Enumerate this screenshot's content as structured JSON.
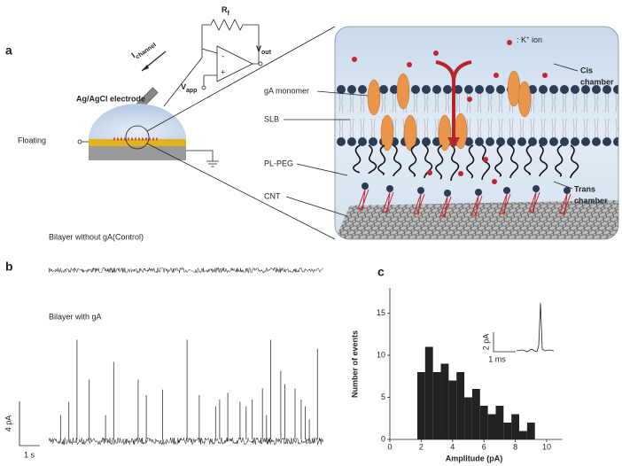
{
  "panel_a": {
    "label": "a",
    "circuit": {
      "rf": {
        "main": "R",
        "sub": "f"
      },
      "current": {
        "main": "I",
        "sub": "channel"
      },
      "vout": {
        "main": "V",
        "sub": "out"
      },
      "vapp": {
        "main": "V",
        "sub": "app"
      },
      "op_minus": "-",
      "op_plus": "+",
      "electrode": "Ag/AgCl electrode",
      "floating": "Floating"
    },
    "schematic": {
      "ion_legend": {
        "pre": ": K",
        "sup": "+",
        "post": " ion"
      },
      "cis": [
        "Cis",
        "chamber"
      ],
      "trans": [
        "Trans",
        "chamber"
      ],
      "labels": [
        "gA monomer",
        "SLB",
        "PL-PEG",
        "CNT"
      ]
    }
  },
  "panel_b": {
    "label": "b",
    "control_title": "Bilayer without gA(Control)",
    "ga_title": "Bilayer with gA",
    "scale_y": "4 pA",
    "scale_x": "1 s",
    "spikes": {
      "time": [
        0.5,
        0.9,
        1.3,
        1.9,
        2.7,
        3.1,
        4.3,
        4.7,
        5.5,
        6.7,
        7.3,
        8.1,
        8.3,
        8.7,
        9.3,
        9.6,
        9.9,
        10.4,
        10.6,
        10.8,
        11.3,
        11.5,
        12.0,
        12.3,
        12.5,
        12.7,
        13.1
      ],
      "amplitude": [
        2.2,
        3.4,
        9.0,
        5.4,
        2.2,
        7.0,
        5.4,
        4.0,
        4.5,
        9.0,
        4.0,
        3.0,
        3.6,
        4.2,
        3.4,
        3.0,
        3.6,
        4.6,
        2.2,
        9.0,
        6.2,
        5.0,
        4.6,
        3.6,
        3.0,
        1.8,
        8.2
      ]
    }
  },
  "chart_data": {
    "type": "histogram",
    "panel_label": "c",
    "x_label": "Amplitude (pA)",
    "y_label": "Number of events",
    "bins": [
      1.75,
      2.25,
      2.75,
      3.25,
      3.75,
      4.25,
      4.75,
      5.25,
      5.75,
      6.25,
      6.75,
      7.25,
      7.75,
      8.25,
      8.75,
      9.25
    ],
    "counts": [
      8,
      11,
      8,
      9,
      7,
      8,
      5,
      6,
      4,
      3,
      4,
      2,
      3,
      1,
      2
    ],
    "color": "#222222",
    "xlim": [
      0,
      11
    ],
    "ylim": [
      0,
      18
    ],
    "xticks": [
      0,
      2,
      4,
      6,
      8,
      10
    ],
    "yticks": [
      0,
      5,
      10,
      15
    ],
    "inset": {
      "scale_y": "2 pA",
      "scale_x": "1 ms"
    }
  }
}
